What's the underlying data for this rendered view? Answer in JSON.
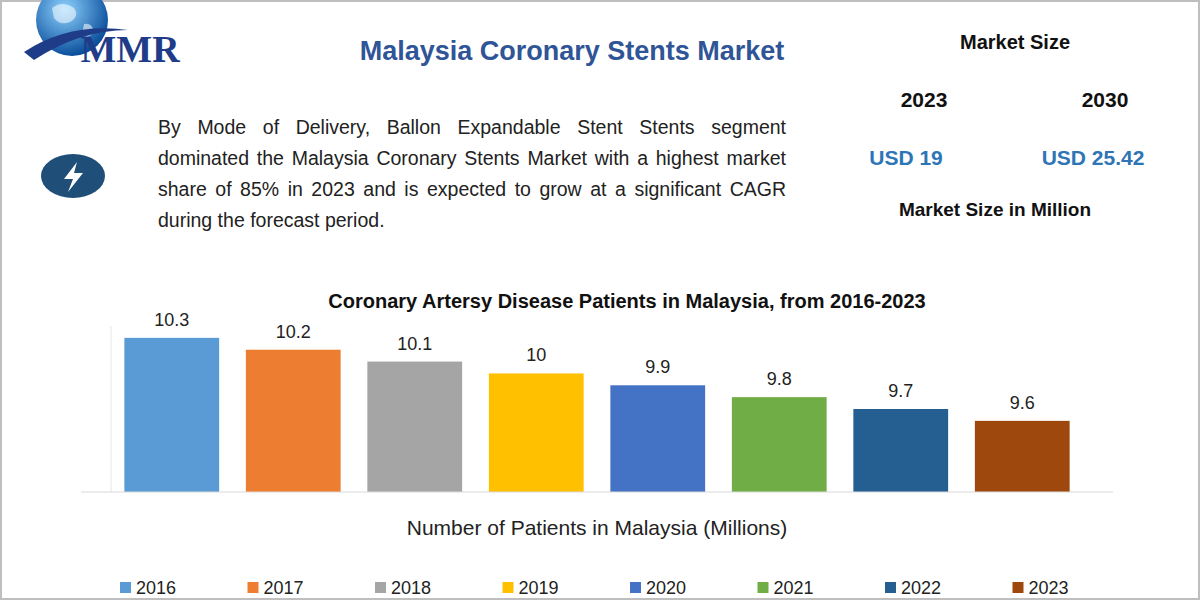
{
  "header": {
    "logo": "MMR",
    "title": "Malaysia Coronary Stents Market"
  },
  "summary": {
    "text": "By Mode of Delivery, Ballon Expandable Stent Stents segment dominated the Malaysia Coronary Stents Market with a highest market share of 85% in 2023 and is expected to grow at a significant CAGR during the forecast period."
  },
  "market_size": {
    "title": "Market Size",
    "years": [
      "2023",
      "2030"
    ],
    "amounts": [
      "USD 19",
      "USD 25.42"
    ],
    "unit": "Market Size in Million"
  },
  "chart_data": {
    "type": "bar",
    "title": "Coronary Artersy Disease Patients in Malaysia, from 2016-2023",
    "xlabel": "Number of Patients in Malaysia (Millions)",
    "categories": [
      "2016",
      "2017",
      "2018",
      "2019",
      "2020",
      "2021",
      "2022",
      "2023"
    ],
    "values": [
      10.3,
      10.2,
      10.1,
      10,
      9.9,
      9.8,
      9.7,
      9.6
    ],
    "colors": [
      "#5b9bd5",
      "#ed7d31",
      "#a5a5a5",
      "#ffc000",
      "#4472c4",
      "#70ad47",
      "#255e91",
      "#9e480e"
    ],
    "ylim": [
      9,
      10.4
    ],
    "data_labels": true,
    "tick_labels": false,
    "legend": "bottom",
    "grid": false
  }
}
